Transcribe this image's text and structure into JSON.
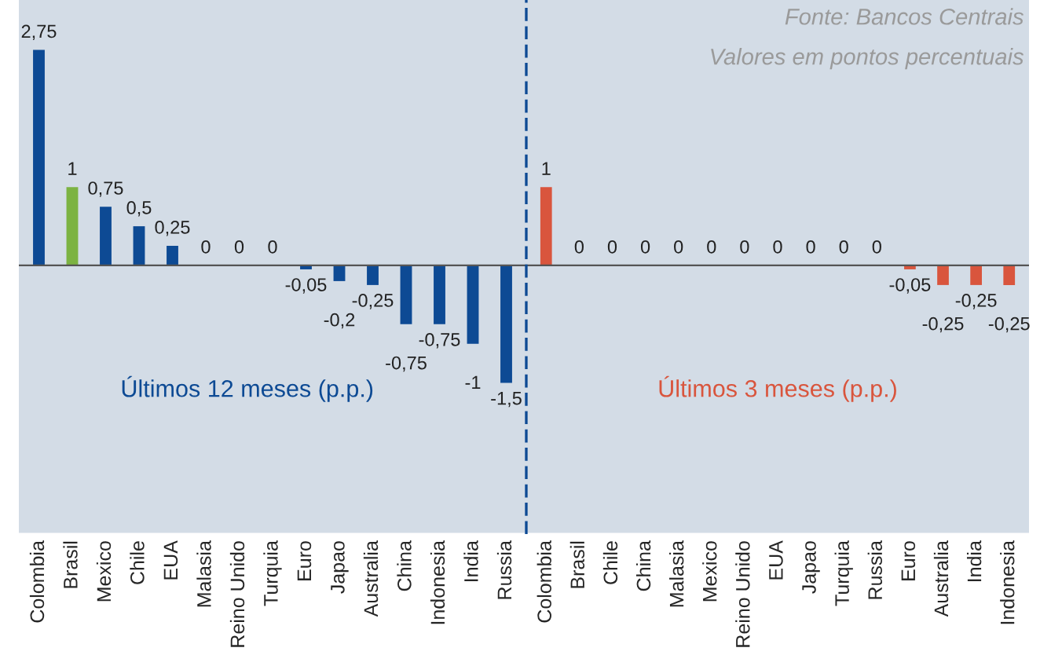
{
  "chart_data": [
    {
      "type": "bar",
      "categories": [
        "Colombia",
        "Brasil",
        "Mexico",
        "Chile",
        "EUA",
        "Malasia",
        "Reino Unido",
        "Turquia",
        "Euro",
        "Japao",
        "Australia",
        "China",
        "Indonesia",
        "India",
        "Russia"
      ],
      "values": [
        2.75,
        1,
        0.75,
        0.5,
        0.25,
        0,
        0,
        0,
        -0.05,
        -0.2,
        -0.25,
        -0.75,
        -0.75,
        -1,
        -1.5
      ],
      "colors": [
        "#0d4a94",
        "#7cb342",
        "#0d4a94",
        "#0d4a94",
        "#0d4a94",
        "#0d4a94",
        "#0d4a94",
        "#0d4a94",
        "#0d4a94",
        "#0d4a94",
        "#0d4a94",
        "#0d4a94",
        "#0d4a94",
        "#0d4a94",
        "#0d4a94"
      ],
      "value_labels": [
        "2,75",
        "1",
        "0,75",
        "0,5",
        "0,25",
        "0",
        "0",
        "0",
        "-0,05",
        "-0,2",
        "-0,25",
        "-0,75",
        "-0,75",
        "-1",
        "-1,5"
      ],
      "annotations": [
        "Últimos 12 meses (p.p.)"
      ],
      "tick_labels": "x",
      "grid": false,
      "legend": false
    },
    {
      "type": "bar",
      "categories": [
        "Colombia",
        "Brasil",
        "Chile",
        "China",
        "Malasia",
        "Mexico",
        "Reino Unido",
        "EUA",
        "Japao",
        "Turquia",
        "Russia",
        "Euro",
        "Australia",
        "India",
        "Indonesia"
      ],
      "values": [
        1,
        0,
        0,
        0,
        0,
        0,
        0,
        0,
        0,
        0,
        0,
        -0.05,
        -0.25,
        -0.25,
        -0.25
      ],
      "color": "#d9553d",
      "value_labels": [
        "1",
        "0",
        "0",
        "0",
        "0",
        "0",
        "0",
        "0",
        "0",
        "0",
        "0",
        "-0,05",
        "-0,25",
        "-0,25",
        "-0,25"
      ],
      "annotations": [
        "Últimos 3 meses (p.p.)",
        "Fonte: Bancos Centrais",
        "Valores em pontos percentuais"
      ],
      "tick_labels": "x",
      "grid": false,
      "legend": false
    }
  ]
}
